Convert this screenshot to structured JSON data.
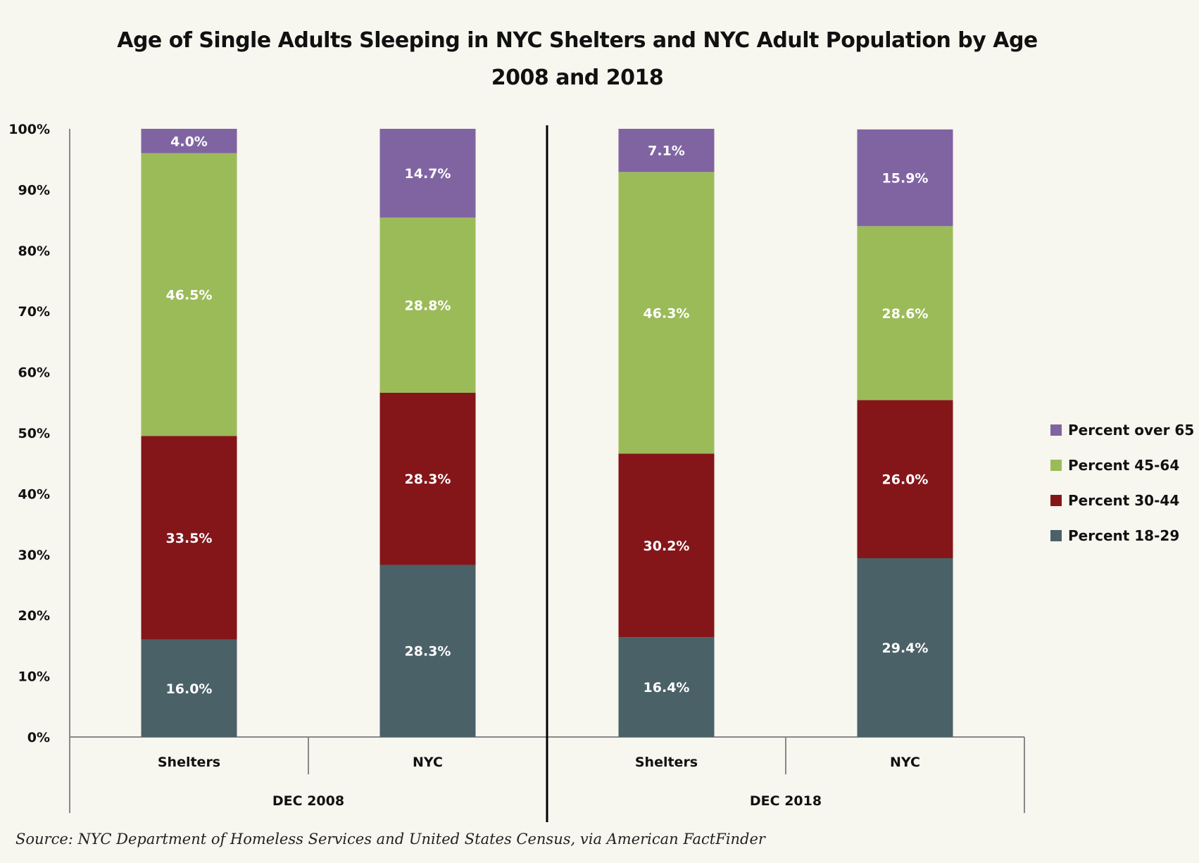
{
  "chart_data": {
    "type": "bar",
    "stacked": true,
    "title": "Age of Single Adults Sleeping in NYC Shelters and NYC Adult Population by Age",
    "subtitle": "2008 and 2018",
    "groups": [
      "DEC 2008",
      "DEC 2018"
    ],
    "categories": [
      "Shelters",
      "NYC",
      "Shelters",
      "NYC"
    ],
    "category_group": [
      "DEC 2008",
      "DEC 2008",
      "DEC 2018",
      "DEC 2018"
    ],
    "series": [
      {
        "name": "Percent 18-29",
        "color": "#4b6168",
        "values": [
          16.0,
          28.3,
          16.4,
          29.4
        ]
      },
      {
        "name": "Percent 30-44",
        "color": "#84161a",
        "values": [
          33.5,
          28.3,
          30.2,
          26.0
        ]
      },
      {
        "name": "Percent 45-64",
        "color": "#9bbb59",
        "values": [
          46.5,
          28.8,
          46.3,
          28.6
        ]
      },
      {
        "name": "Percent over 65",
        "color": "#8064a2",
        "values": [
          4.0,
          14.7,
          7.1,
          15.9
        ]
      }
    ],
    "data_labels": [
      [
        "16.0%",
        "28.3%",
        "16.4%",
        "29.4%"
      ],
      [
        "33.5%",
        "28.3%",
        "30.2%",
        "26.0%"
      ],
      [
        "46.5%",
        "28.8%",
        "46.3%",
        "28.6%"
      ],
      [
        "4.0%",
        "14.7%",
        "7.1%",
        "15.9%"
      ]
    ],
    "yticks": [
      "0%",
      "10%",
      "20%",
      "30%",
      "40%",
      "50%",
      "60%",
      "70%",
      "80%",
      "90%",
      "100%"
    ],
    "ylim": [
      0,
      100
    ],
    "grid": false,
    "legend_position": "right",
    "source": "Source: NYC Department of Homeless Services and United States Census, via American FactFinder"
  }
}
